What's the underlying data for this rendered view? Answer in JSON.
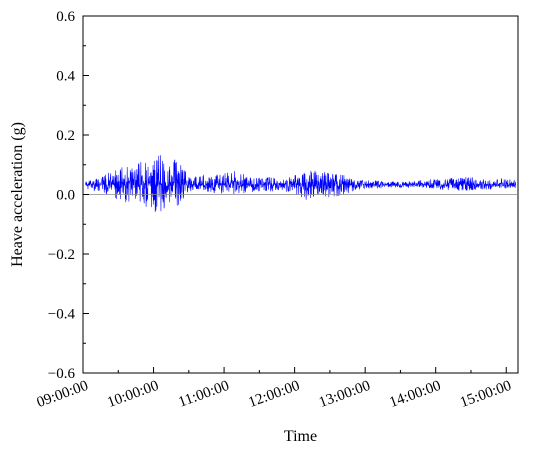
{
  "chart_data": {
    "type": "line",
    "title": "",
    "xlabel": "Time",
    "ylabel": "Heave acceleration (g)",
    "ylim": [
      -0.6,
      0.6
    ],
    "yticks": [
      -0.6,
      -0.4,
      -0.2,
      0.0,
      0.2,
      0.4,
      0.6
    ],
    "ytick_labels": [
      "−0.6",
      "−0.4",
      "−0.2",
      "0.0",
      "0.2",
      "0.4",
      "0.6"
    ],
    "xlim": [
      "09:00:00",
      "15:10:00"
    ],
    "xticks": [
      "09:00:00",
      "10:00:00",
      "11:00:00",
      "12:00:00",
      "13:00:00",
      "14:00:00",
      "15:00:00"
    ],
    "grid": false,
    "reference_line": 0.0,
    "series": [
      {
        "color": "#0000ff",
        "baseline": 0.033,
        "envelope": {
          "time": [
            "09:02:00",
            "09:10:00",
            "09:20:00",
            "09:30:00",
            "09:40:00",
            "09:50:00",
            "10:00:00",
            "10:05:00",
            "10:10:00",
            "10:15:00",
            "10:20:00",
            "10:30:00",
            "10:40:00",
            "10:50:00",
            "11:00:00",
            "11:10:00",
            "11:20:00",
            "11:30:00",
            "11:40:00",
            "11:50:00",
            "12:00:00",
            "12:10:00",
            "12:20:00",
            "12:30:00",
            "12:40:00",
            "12:50:00",
            "13:00:00",
            "13:10:00",
            "13:20:00",
            "13:30:00",
            "13:40:00",
            "13:50:00",
            "14:00:00",
            "14:10:00",
            "14:20:00",
            "14:30:00",
            "14:40:00",
            "14:50:00",
            "15:00:00",
            "15:08:00"
          ],
          "upper": [
            0.045,
            0.05,
            0.07,
            0.09,
            0.1,
            0.11,
            0.13,
            0.15,
            0.1,
            0.1,
            0.13,
            0.06,
            0.07,
            0.07,
            0.075,
            0.08,
            0.07,
            0.065,
            0.06,
            0.05,
            0.07,
            0.085,
            0.08,
            0.075,
            0.07,
            0.05,
            0.048,
            0.05,
            0.045,
            0.044,
            0.045,
            0.05,
            0.055,
            0.055,
            0.06,
            0.058,
            0.055,
            0.05,
            0.055,
            0.045
          ],
          "lower": [
            0.02,
            0.01,
            0.0,
            -0.02,
            -0.03,
            -0.04,
            -0.05,
            -0.09,
            -0.04,
            -0.03,
            -0.05,
            0.01,
            0.01,
            0.005,
            0.0,
            0.0,
            0.005,
            0.01,
            0.01,
            0.015,
            -0.01,
            -0.02,
            0.0,
            -0.01,
            -0.005,
            0.01,
            0.02,
            0.02,
            0.022,
            0.024,
            0.022,
            0.02,
            0.015,
            0.015,
            0.012,
            0.012,
            0.015,
            0.018,
            0.02,
            0.022
          ]
        }
      }
    ]
  }
}
